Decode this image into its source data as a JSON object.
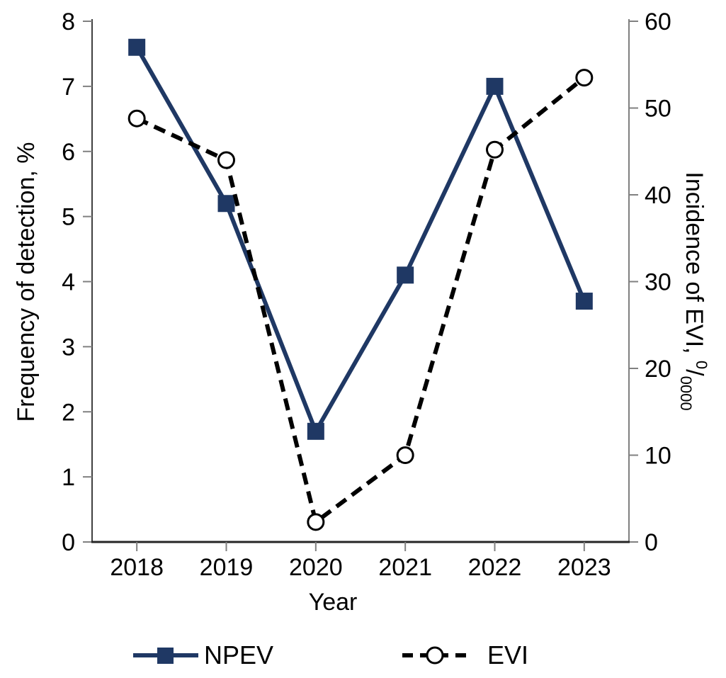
{
  "chart_data": {
    "type": "line",
    "x": [
      "2018",
      "2019",
      "2020",
      "2021",
      "2022",
      "2023"
    ],
    "xlabel": "Year",
    "series": [
      {
        "name": "NPEV",
        "axis": "left",
        "values": [
          7.6,
          5.2,
          1.7,
          4.1,
          7.0,
          3.7
        ],
        "color": "#1F3864",
        "line_style": "solid",
        "marker": "filled-square"
      },
      {
        "name": "EVI",
        "axis": "right",
        "values": [
          48.8,
          44.0,
          2.3,
          10.0,
          45.2,
          53.5
        ],
        "color": "#000000",
        "line_style": "dashed",
        "marker": "open-circle"
      }
    ],
    "left_axis": {
      "label": "Frequency of detection, %",
      "min": 0,
      "max": 8,
      "step": 1,
      "ticks": [
        "0",
        "1",
        "2",
        "3",
        "4",
        "5",
        "6",
        "7",
        "8"
      ]
    },
    "right_axis": {
      "label_prefix": "Incidence of EVI, ",
      "label_sup": "0",
      "label_slash": "/",
      "label_sub": "0000",
      "min": 0,
      "max": 60,
      "step": 10,
      "ticks": [
        "0",
        "10",
        "20",
        "30",
        "40",
        "50",
        "60"
      ]
    },
    "legend": {
      "position": "bottom",
      "entries": [
        "NPEV",
        "EVI"
      ]
    },
    "grid": false,
    "title": ""
  },
  "colors": {
    "npev": "#1F3864",
    "evi": "#000000",
    "axis_left": "#404040",
    "axis_bottom": "#262626",
    "axis_right": "#7F7F7F",
    "tick": "#808080",
    "background": "#FFFFFF"
  }
}
